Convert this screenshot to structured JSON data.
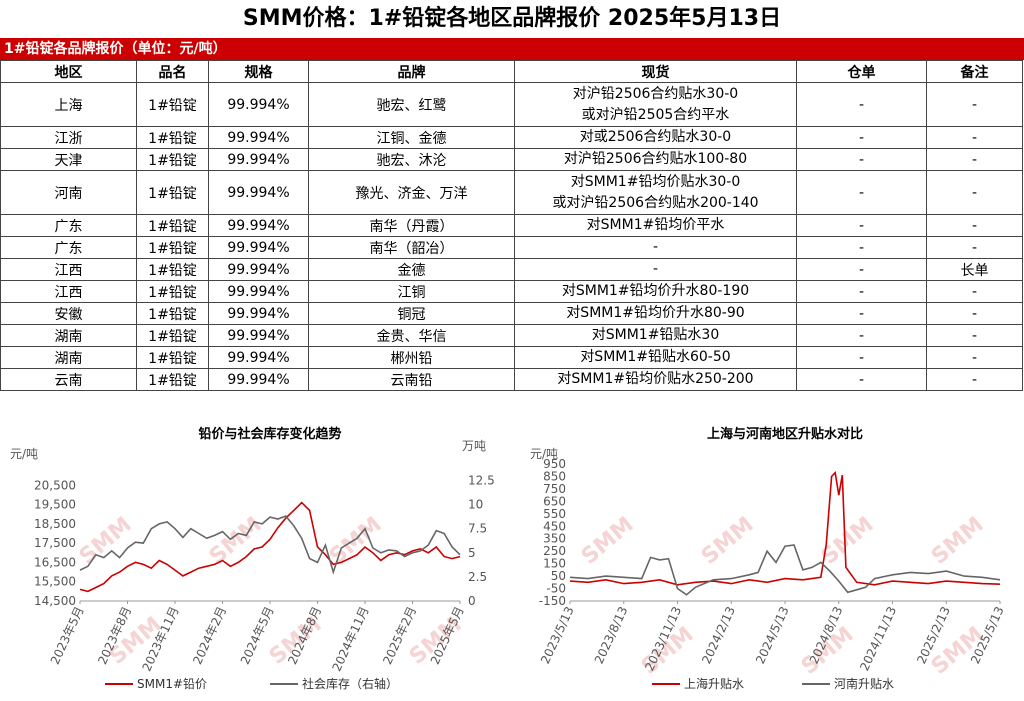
{
  "page": {
    "title": "SMM价格：1#铅锭各地区品牌报价 2025年5月13日",
    "table_banner": "1#铅锭各品牌报价（单位：元/吨）"
  },
  "table": {
    "headers": [
      "地区",
      "品名",
      "规格",
      "品牌",
      "现货",
      "仓单",
      "备注"
    ],
    "rows": [
      {
        "region": "上海",
        "name": "1#铅锭",
        "spec": "99.994%",
        "brand": "驰宏、红鹭",
        "spot": [
          "对沪铅2506合约贴水30-0",
          "或对沪铅2505合约平水"
        ],
        "warrant": "-",
        "note": "-"
      },
      {
        "region": "江浙",
        "name": "1#铅锭",
        "spec": "99.994%",
        "brand": "江铜、金德",
        "spot": [
          "对或2506合约贴水30-0"
        ],
        "warrant": "-",
        "note": "-"
      },
      {
        "region": "天津",
        "name": "1#铅锭",
        "spec": "99.994%",
        "brand": "驰宏、沐沦",
        "spot": [
          "对沪铅2506合约贴水100-80"
        ],
        "warrant": "-",
        "note": "-"
      },
      {
        "region": "河南",
        "name": "1#铅锭",
        "spec": "99.994%",
        "brand": "豫光、济金、万洋",
        "spot": [
          "对SMM1#铅均价贴水30-0",
          "或对沪铅2506合约贴水200-140"
        ],
        "warrant": "-",
        "note": "-"
      },
      {
        "region": "广东",
        "name": "1#铅锭",
        "spec": "99.994%",
        "brand": "南华（丹霞）",
        "spot": [
          "对SMM1#铅均价平水"
        ],
        "warrant": "-",
        "note": "-"
      },
      {
        "region": "广东",
        "name": "1#铅锭",
        "spec": "99.994%",
        "brand": "南华（韶冶）",
        "spot": [
          "-"
        ],
        "warrant": "-",
        "note": "-"
      },
      {
        "region": "江西",
        "name": "1#铅锭",
        "spec": "99.994%",
        "brand": "金德",
        "spot": [
          "-"
        ],
        "warrant": "-",
        "note": "长单"
      },
      {
        "region": "江西",
        "name": "1#铅锭",
        "spec": "99.994%",
        "brand": "江铜",
        "spot": [
          "对SMM1#铅均价升水80-190"
        ],
        "warrant": "-",
        "note": "-"
      },
      {
        "region": "安徽",
        "name": "1#铅锭",
        "spec": "99.994%",
        "brand": "铜冠",
        "spot": [
          "对SMM1#铅均价升水80-90"
        ],
        "warrant": "-",
        "note": "-"
      },
      {
        "region": "湖南",
        "name": "1#铅锭",
        "spec": "99.994%",
        "brand": "金贵、华信",
        "spot": [
          "对SMM1#铅贴水30"
        ],
        "warrant": "-",
        "note": "-"
      },
      {
        "region": "湖南",
        "name": "1#铅锭",
        "spec": "99.994%",
        "brand": "郴州铅",
        "spot": [
          "对SMM1#铅贴水60-50"
        ],
        "warrant": "-",
        "note": "-"
      },
      {
        "region": "云南",
        "name": "1#铅锭",
        "spec": "99.994%",
        "brand": "云南铅",
        "spot": [
          "对SMM1#铅均价贴水250-200"
        ],
        "warrant": "-",
        "note": "-"
      }
    ]
  },
  "colors": {
    "red": "#cc0000",
    "gray": "#666666",
    "watermark": "#f6d4d4"
  },
  "chart_data": [
    {
      "type": "line",
      "title": "铅价与社会库存变化趋势",
      "left_unit": "元/吨",
      "right_unit": "万吨",
      "ylim": [
        14500,
        21500
      ],
      "yticks": [
        "14,500",
        "15,500",
        "16,500",
        "17,500",
        "18,500",
        "19,500",
        "20,500"
      ],
      "yticks_values": [
        14500,
        15500,
        16500,
        17500,
        18500,
        19500,
        20500
      ],
      "y2lim": [
        0,
        14
      ],
      "y2ticks": [
        "0",
        "2.5",
        "5",
        "7.5",
        "10",
        "12.5"
      ],
      "y2ticks_values": [
        0,
        2.5,
        5,
        7.5,
        10,
        12.5
      ],
      "xlim": [
        0,
        24
      ],
      "xticks": [
        "2023年5月",
        "2023年8月",
        "2023年11月",
        "2024年2月",
        "2024年5月",
        "2024年8月",
        "2024年11月",
        "2025年2月",
        "2025年5月"
      ],
      "xticks_pos": [
        0,
        3,
        6,
        9,
        12,
        15,
        18,
        21,
        24
      ],
      "grid": false,
      "legend": "bottom",
      "series": [
        {
          "name": "SMM1#铅价",
          "axis": "left",
          "color": "#cc0000",
          "x": [
            0,
            0.5,
            1,
            1.5,
            2,
            2.5,
            3,
            3.5,
            4,
            4.5,
            5,
            5.5,
            6,
            6.5,
            7,
            7.5,
            8,
            8.5,
            9,
            9.5,
            10,
            10.5,
            11,
            11.5,
            12,
            12.5,
            13,
            13.5,
            14,
            14.5,
            15,
            15.5,
            16,
            16.5,
            17,
            17.5,
            18,
            18.5,
            19,
            19.5,
            20,
            20.5,
            21,
            21.5,
            22,
            22.5,
            23,
            23.5,
            24
          ],
          "y": [
            15100,
            15000,
            15200,
            15400,
            15800,
            16000,
            16300,
            16500,
            16400,
            16200,
            16600,
            16400,
            16100,
            15800,
            16000,
            16200,
            16300,
            16400,
            16600,
            16300,
            16500,
            16800,
            17200,
            17300,
            17700,
            18300,
            18800,
            19200,
            19600,
            19200,
            17300,
            16900,
            16400,
            16500,
            16700,
            16900,
            17300,
            17000,
            16600,
            16900,
            17000,
            16900,
            17100,
            17200,
            17000,
            17300,
            16800,
            16700,
            16800
          ]
        },
        {
          "name": "社会库存（右轴）",
          "axis": "right",
          "color": "#666666",
          "x": [
            0,
            0.5,
            1,
            1.5,
            2,
            2.5,
            3,
            3.5,
            4,
            4.5,
            5,
            5.5,
            6,
            6.5,
            7,
            7.5,
            8,
            8.5,
            9,
            9.5,
            10,
            10.5,
            11,
            11.5,
            12,
            12.5,
            13,
            13.5,
            14,
            14.5,
            15,
            15.5,
            16,
            16.5,
            17,
            17.5,
            18,
            18.5,
            19,
            19.5,
            20,
            20.5,
            21,
            21.5,
            22,
            22.5,
            23,
            23.5,
            24
          ],
          "y": [
            3.2,
            3.6,
            4.8,
            4.5,
            5.2,
            4.5,
            5.5,
            6.1,
            6.0,
            7.5,
            8.0,
            8.2,
            7.5,
            6.6,
            7.5,
            7.0,
            6.5,
            6.8,
            7.2,
            6.4,
            7.0,
            6.8,
            8.2,
            8.0,
            8.7,
            8.5,
            8.8,
            7.8,
            6.5,
            4.4,
            4.0,
            5.8,
            3.0,
            5.5,
            6.0,
            6.5,
            7.5,
            5.5,
            5.0,
            5.3,
            5.2,
            4.6,
            5.0,
            5.2,
            5.8,
            7.3,
            7.0,
            5.6,
            4.8
          ]
        }
      ]
    },
    {
      "type": "line",
      "title": "上海与河南地区升贴水对比",
      "left_unit": "元/吨",
      "ylim": [
        -150,
        950
      ],
      "yticks": [
        "-150",
        "-50",
        "50",
        "150",
        "250",
        "350",
        "450",
        "550",
        "650",
        "750",
        "850",
        "950"
      ],
      "yticks_values": [
        -150,
        -50,
        50,
        150,
        250,
        350,
        450,
        550,
        650,
        750,
        850,
        950
      ],
      "xlim": [
        0,
        24
      ],
      "xticks": [
        "2023/5/13",
        "2023/8/13",
        "2023/11/13",
        "2024/2/13",
        "2024/5/13",
        "2024/8/13",
        "2024/11/13",
        "2025/2/13",
        "2025/5/13"
      ],
      "xticks_pos": [
        0,
        3,
        6,
        9,
        12,
        15,
        18,
        21,
        24
      ],
      "grid": false,
      "legend": "bottom",
      "series": [
        {
          "name": "上海升贴水",
          "color": "#cc0000",
          "x": [
            0,
            1,
            2,
            3,
            4,
            5,
            6,
            7,
            8,
            9,
            10,
            11,
            12,
            13,
            14,
            14.3,
            14.6,
            14.8,
            15,
            15.2,
            15.4,
            16,
            17,
            18,
            19,
            20,
            21,
            22,
            23,
            24
          ],
          "y": [
            10,
            0,
            20,
            -10,
            0,
            20,
            -20,
            0,
            10,
            -10,
            20,
            0,
            30,
            20,
            40,
            300,
            850,
            880,
            700,
            860,
            120,
            0,
            -20,
            10,
            0,
            -10,
            10,
            0,
            -10,
            -15
          ]
        },
        {
          "name": "河南升贴水",
          "color": "#666666",
          "x": [
            0,
            1,
            2,
            3,
            4,
            4.5,
            5,
            5.5,
            6,
            6.5,
            7,
            8,
            9,
            10,
            10.5,
            11,
            11.5,
            12,
            12.5,
            13,
            13.5,
            14,
            14.5,
            15,
            15.5,
            16,
            16.5,
            17,
            18,
            19,
            20,
            21,
            22,
            23,
            24
          ],
          "y": [
            40,
            30,
            50,
            40,
            30,
            200,
            180,
            190,
            -50,
            -100,
            -40,
            20,
            30,
            60,
            80,
            250,
            160,
            290,
            300,
            100,
            120,
            160,
            90,
            10,
            -80,
            -60,
            -40,
            30,
            60,
            80,
            70,
            90,
            50,
            40,
            20
          ]
        }
      ]
    }
  ]
}
